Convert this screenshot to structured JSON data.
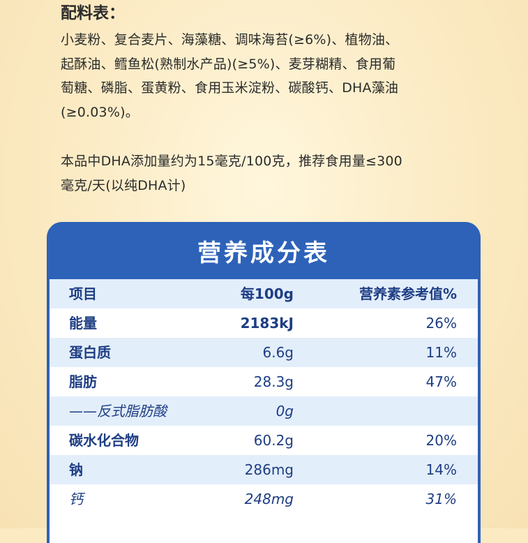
{
  "ingredients": {
    "title": "配料表：",
    "text": "小麦粉、复合麦片、海藻糖、调味海苔(≥6%)、植物油、\n起酥油、鳕鱼松(熟制水产品)(≥5%)、麦芽糊精、食用葡\n萄糖、磷脂、蛋黄粉、食用玉米淀粉、碳酸钙、DHA藻油\n(≥0.03%)。",
    "dha_note": "本品中DHA添加量约为15毫克/100克，推荐食用量≤300\n毫克/天(以纯DHA计)"
  },
  "nutrition": {
    "title": "营养成分表",
    "header": {
      "item": "项目",
      "per100g": "每100g",
      "nrv": "营养素参考值%"
    },
    "rows": [
      {
        "item": "能量",
        "per100g": "2183kJ",
        "nrv": "26%"
      },
      {
        "item": "蛋白质",
        "per100g": "6.6g",
        "nrv": "11%"
      },
      {
        "item": "脂肪",
        "per100g": "28.3g",
        "nrv": "47%"
      },
      {
        "item": "——反式脂肪酸",
        "per100g": "0g",
        "nrv": ""
      },
      {
        "item": "碳水化合物",
        "per100g": "60.2g",
        "nrv": "20%"
      },
      {
        "item": "钠",
        "per100g": "286mg",
        "nrv": "14%"
      },
      {
        "item": "钙",
        "per100g": "248mg",
        "nrv": "31%"
      }
    ]
  },
  "colors": {
    "background": "#fbeac2",
    "panel_blue": "#2d62b8",
    "row_shade": "#e3eefb",
    "table_text": "#1e3e84"
  }
}
